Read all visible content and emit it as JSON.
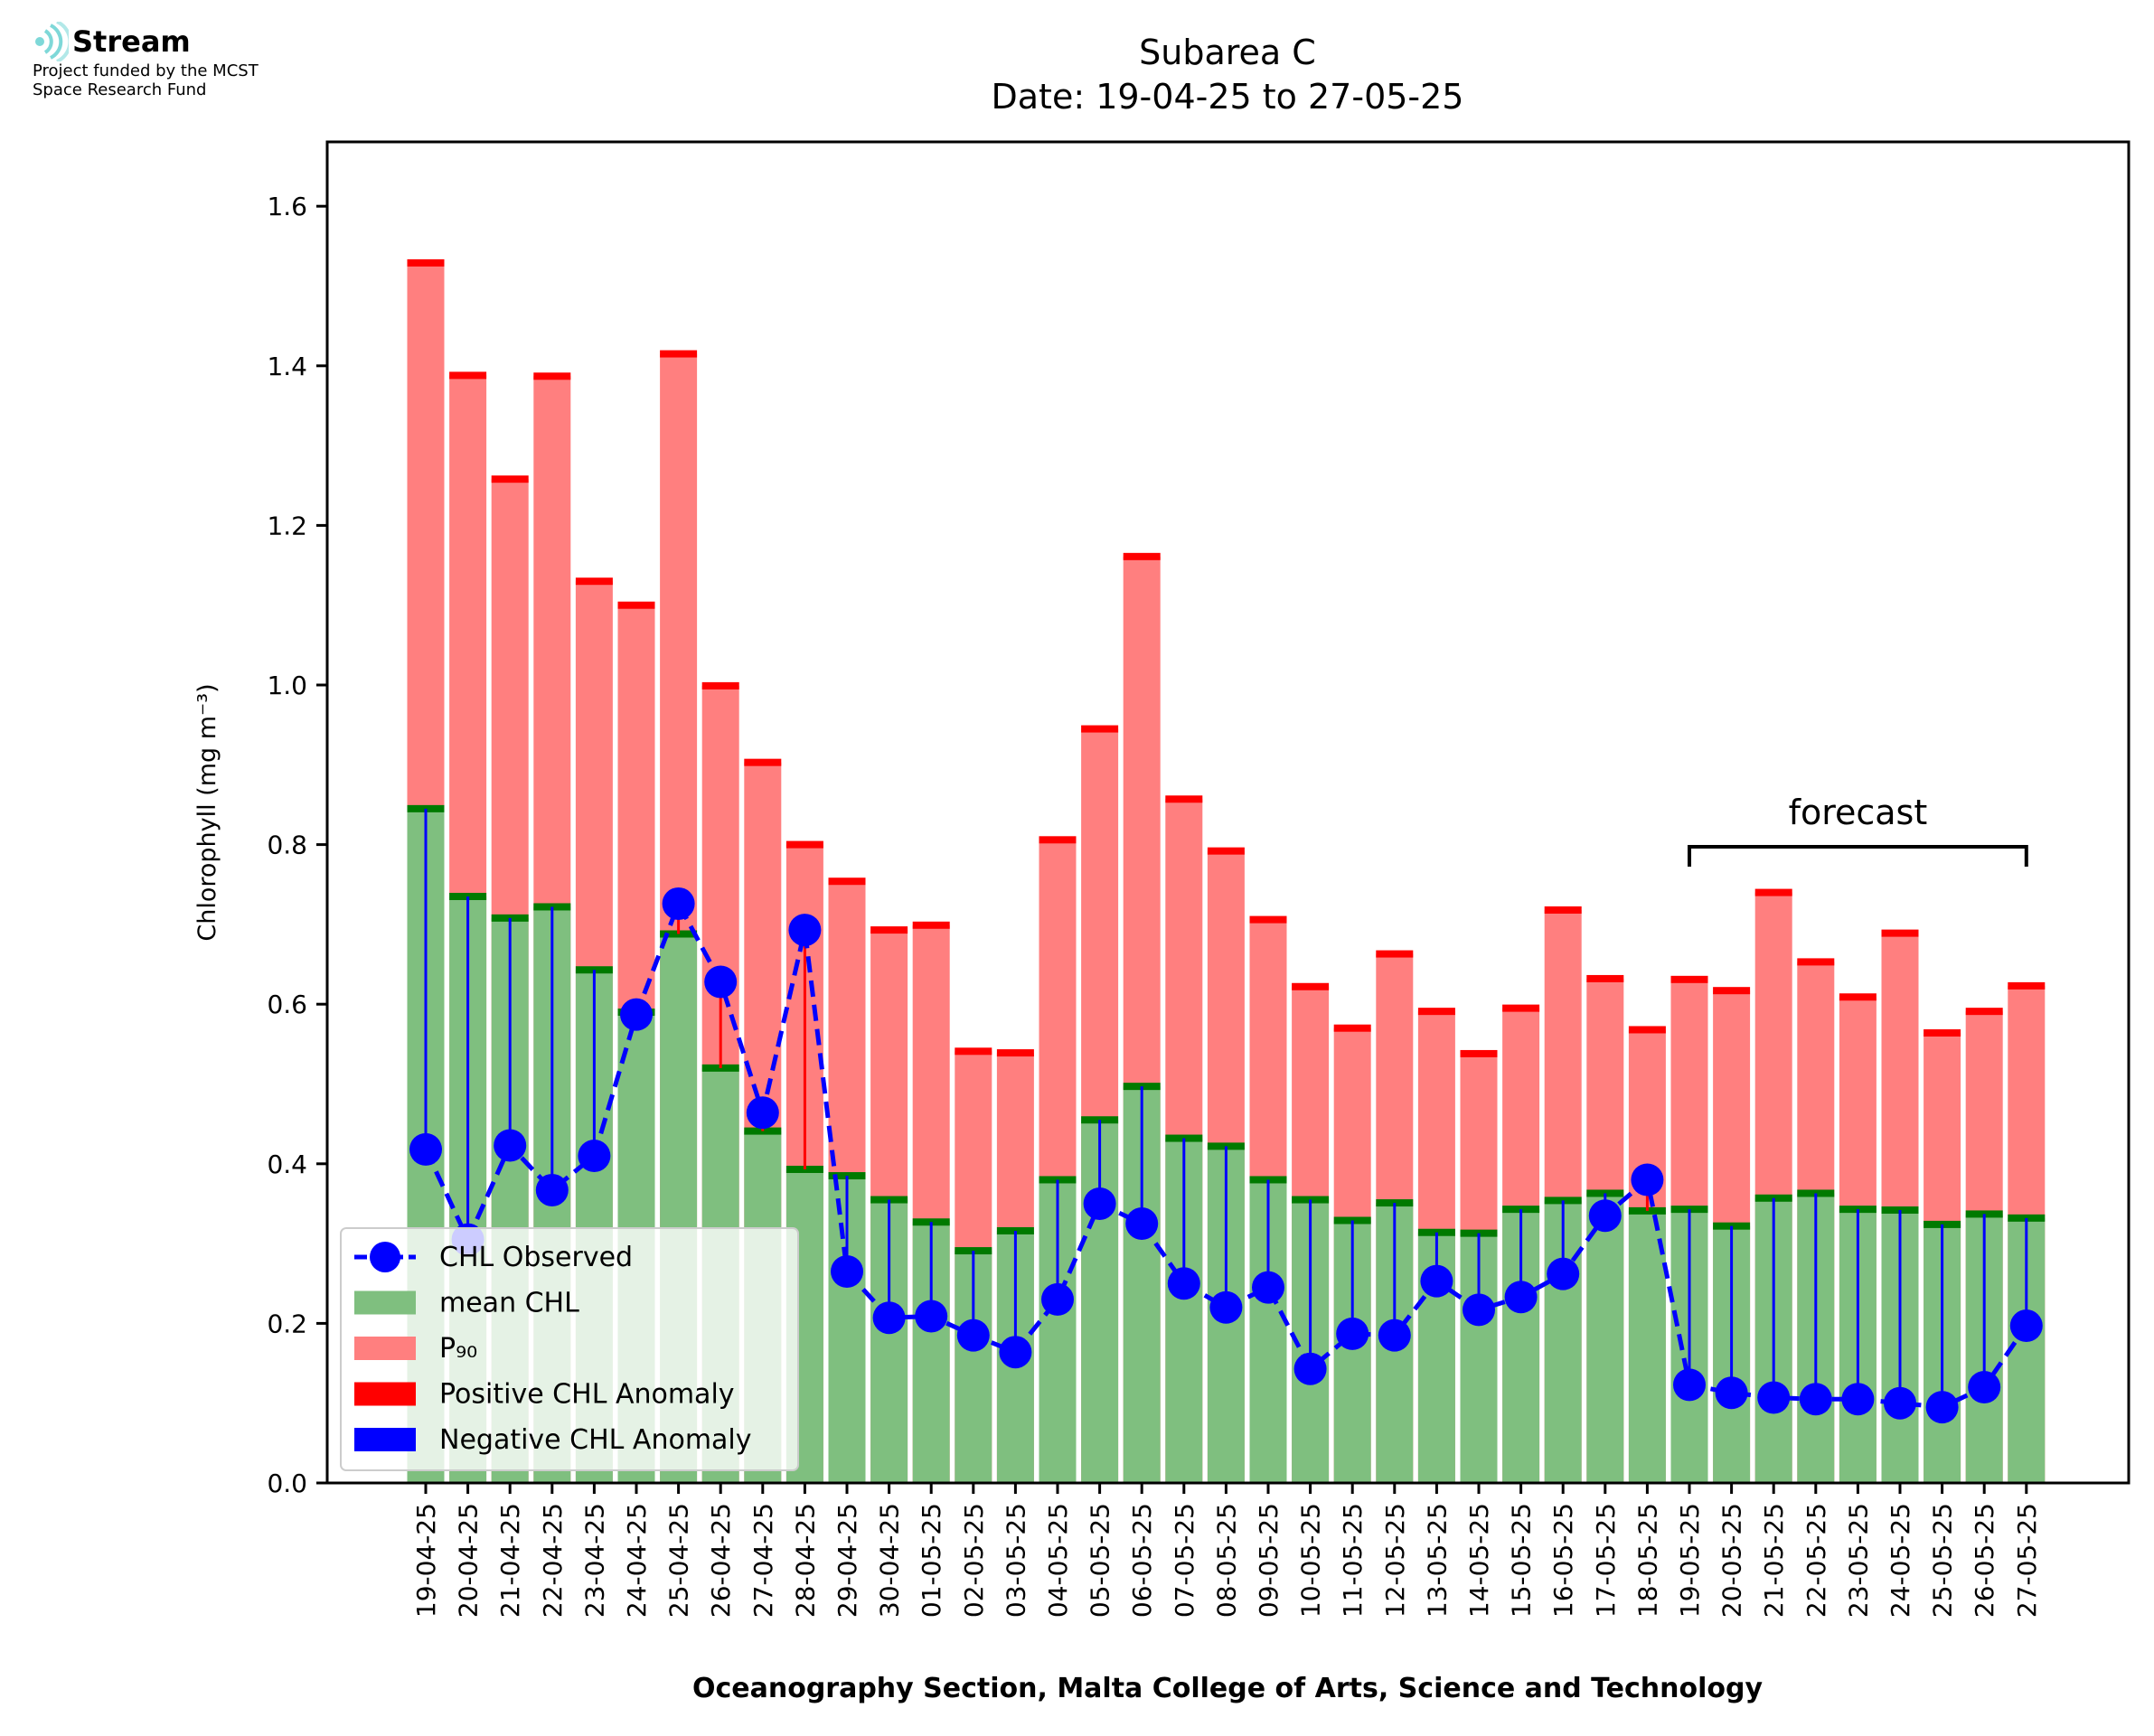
{
  "logo": {
    "brand": "Stream",
    "line1": "Project funded by the MCST",
    "line2": "Space Research Fund"
  },
  "chart_data": {
    "type": "bar",
    "title": "Subarea C",
    "subtitle": "Date: 19-04-25 to 27-05-25",
    "ylabel": "Chlorophyll (mg m⁻³)",
    "xlabel": "Oceanography Section, Malta College of Arts, Science and Technology",
    "ylim": [
      0,
      1.68
    ],
    "yticks": [
      "0.0",
      "0.2",
      "0.4",
      "0.6",
      "0.8",
      "1.0",
      "1.2",
      "1.4",
      "1.6"
    ],
    "ytick_values": [
      0.0,
      0.2,
      0.4,
      0.6,
      0.8,
      1.0,
      1.2,
      1.4,
      1.6
    ],
    "categories": [
      "19-04-25",
      "20-04-25",
      "21-04-25",
      "22-04-25",
      "23-04-25",
      "24-04-25",
      "25-04-25",
      "26-04-25",
      "27-04-25",
      "28-04-25",
      "29-04-25",
      "30-04-25",
      "01-05-25",
      "02-05-25",
      "03-05-25",
      "04-05-25",
      "05-05-25",
      "06-05-25",
      "07-05-25",
      "08-05-25",
      "09-05-25",
      "10-05-25",
      "11-05-25",
      "12-05-25",
      "13-05-25",
      "14-05-25",
      "15-05-25",
      "16-05-25",
      "17-05-25",
      "18-05-25",
      "19-05-25",
      "20-05-25",
      "21-05-25",
      "22-05-25",
      "23-05-25",
      "24-05-25",
      "25-05-25",
      "26-05-25",
      "27-05-25"
    ],
    "series": [
      {
        "name": "CHL Observed",
        "color": "#0000ff",
        "values": [
          0.418,
          0.305,
          0.423,
          0.367,
          0.41,
          0.587,
          0.726,
          0.628,
          0.464,
          0.693,
          0.265,
          0.207,
          0.209,
          0.185,
          0.164,
          0.23,
          0.35,
          0.325,
          0.25,
          0.22,
          0.245,
          0.143,
          0.187,
          0.185,
          0.253,
          0.217,
          0.233,
          0.262,
          0.335,
          0.38,
          0.123,
          0.113,
          0.107,
          0.105,
          0.105,
          0.1,
          0.095,
          0.12,
          0.197
        ]
      },
      {
        "name": "mean CHL",
        "color": "#7fbf7f",
        "values": [
          0.845,
          0.735,
          0.708,
          0.722,
          0.643,
          0.59,
          0.688,
          0.52,
          0.441,
          0.393,
          0.385,
          0.355,
          0.327,
          0.291,
          0.316,
          0.38,
          0.455,
          0.497,
          0.432,
          0.422,
          0.38,
          0.355,
          0.329,
          0.351,
          0.314,
          0.313,
          0.343,
          0.354,
          0.363,
          0.341,
          0.343,
          0.322,
          0.357,
          0.363,
          0.343,
          0.342,
          0.324,
          0.337,
          0.332
        ]
      },
      {
        "name": "P₉₀",
        "color": "#ff7f7f",
        "values": [
          1.529,
          1.388,
          1.258,
          1.387,
          1.13,
          1.1,
          1.415,
          0.999,
          0.903,
          0.8,
          0.754,
          0.693,
          0.699,
          0.541,
          0.539,
          0.806,
          0.945,
          1.161,
          0.857,
          0.792,
          0.706,
          0.622,
          0.57,
          0.663,
          0.591,
          0.538,
          0.595,
          0.718,
          0.632,
          0.568,
          0.631,
          0.617,
          0.74,
          0.653,
          0.609,
          0.689,
          0.564,
          0.591,
          0.623
        ]
      },
      {
        "name": "Positive CHL Anomaly",
        "color": "#ff0000"
      },
      {
        "name": "Negative CHL Anomaly",
        "color": "#0000ff"
      }
    ],
    "forecast": {
      "label": "forecast",
      "from": "19-05-25",
      "to": "27-05-25"
    },
    "legend": "lower-left",
    "grid": false
  }
}
